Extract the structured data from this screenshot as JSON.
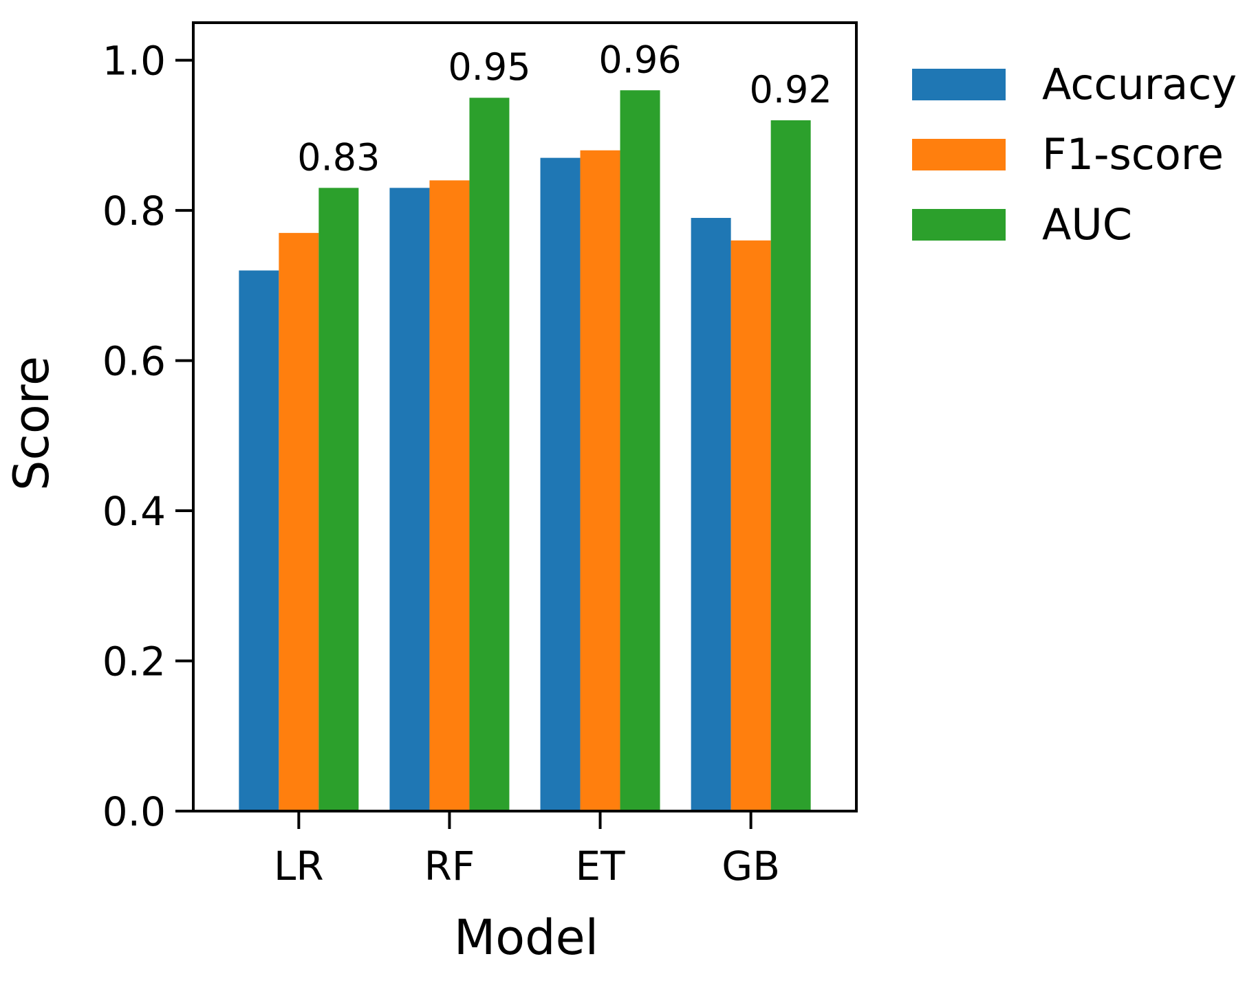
{
  "chart_data": {
    "type": "bar",
    "title": "",
    "xlabel": "Model",
    "ylabel": "Score",
    "categories": [
      "LR",
      "RF",
      "ET",
      "GB"
    ],
    "series": [
      {
        "name": "Accuracy",
        "color": "#1f77b4",
        "values": [
          0.72,
          0.83,
          0.87,
          0.79
        ]
      },
      {
        "name": "F1-score",
        "color": "#ff7f0e",
        "values": [
          0.77,
          0.84,
          0.88,
          0.76
        ]
      },
      {
        "name": "AUC",
        "color": "#2ca02c",
        "values": [
          0.83,
          0.95,
          0.96,
          0.92
        ]
      }
    ],
    "data_labels": {
      "series": "AUC",
      "values": [
        "0.83",
        "0.95",
        "0.96",
        "0.92"
      ]
    },
    "ylim": [
      0.0,
      1.05
    ],
    "yticks": [
      "0.0",
      "0.2",
      "0.4",
      "0.6",
      "0.8",
      "1.0"
    ],
    "grid": false,
    "legend": "outside-right"
  }
}
